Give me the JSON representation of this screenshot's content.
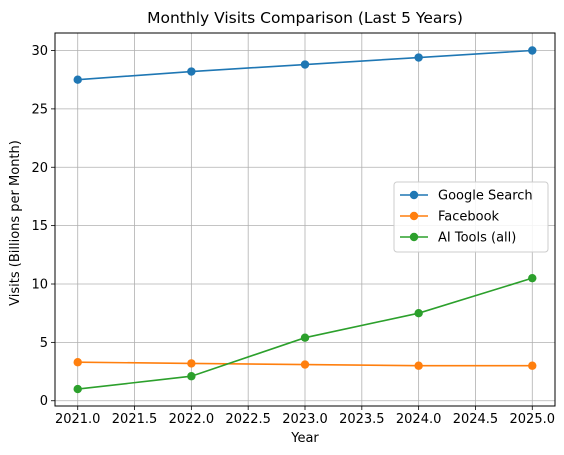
{
  "chart_data": {
    "type": "line",
    "title": "Monthly Visits Comparison (Last 5 Years)",
    "xlabel": "Year",
    "ylabel": "Visits (Billions per Month)",
    "x": [
      2021,
      2022,
      2023,
      2024,
      2025
    ],
    "xlim": [
      2020.8,
      2025.2
    ],
    "ylim": [
      -0.45,
      31.5
    ],
    "xticks": [
      2021.0,
      2021.5,
      2022.0,
      2022.5,
      2023.0,
      2023.5,
      2024.0,
      2024.5,
      2025.0
    ],
    "xtick_labels": [
      "2021.0",
      "2021.5",
      "2022.0",
      "2022.5",
      "2023.0",
      "2023.5",
      "2024.0",
      "2024.5",
      "2025.0"
    ],
    "yticks": [
      0,
      5,
      10,
      15,
      20,
      25,
      30
    ],
    "ytick_labels": [
      "0",
      "5",
      "10",
      "15",
      "20",
      "25",
      "30"
    ],
    "grid": true,
    "legend_position": "center-right",
    "series": [
      {
        "name": "Google Search",
        "color": "#1f77b4",
        "values": [
          27.5,
          28.2,
          28.8,
          29.4,
          30.0
        ]
      },
      {
        "name": "Facebook",
        "color": "#ff7f0e",
        "values": [
          3.3,
          3.2,
          3.1,
          3.0,
          3.0
        ]
      },
      {
        "name": "AI Tools (all)",
        "color": "#2ca02c",
        "values": [
          1.0,
          2.1,
          5.4,
          7.5,
          10.5
        ]
      }
    ]
  }
}
